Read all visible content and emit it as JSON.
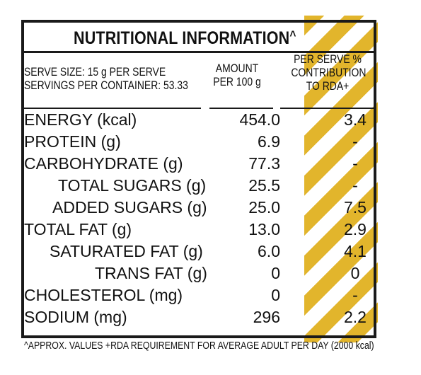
{
  "title": "NUTRITIONAL INFORMATION",
  "title_mark": "^",
  "serve_size": "SERVE SIZE: 15 g PER SERVE",
  "servings": "SERVINGS PER CONTAINER: 53.33",
  "col_amount_l1": "AMOUNT",
  "col_amount_l2": "PER 100 g",
  "col_rda_l1": "PER SERVE %",
  "col_rda_l2": "CONTRIBUTION",
  "col_rda_l3": "TO RDA+",
  "rows": [
    {
      "name": "ENERGY (kcal)",
      "amount": "454.0",
      "rda": "3.4"
    },
    {
      "name": "PROTEIN (g)",
      "amount": "6.9",
      "rda": "-"
    },
    {
      "name": "CARBOHYDRATE (g)",
      "amount": "77.3",
      "rda": "-"
    },
    {
      "name": "TOTAL SUGARS (g)",
      "amount": "25.5",
      "rda": "-"
    },
    {
      "name": "ADDED SUGARS (g)",
      "amount": "25.0",
      "rda": "7.5"
    },
    {
      "name": "TOTAL FAT (g)",
      "amount": "13.0",
      "rda": "2.9"
    },
    {
      "name": "SATURATED FAT (g)",
      "amount": "6.0",
      "rda": "4.1"
    },
    {
      "name": "TRANS FAT (g)",
      "amount": "0",
      "rda": "0"
    },
    {
      "name": "CHOLESTEROL (mg)",
      "amount": "0",
      "rda": "-"
    },
    {
      "name": "SODIUM (mg)",
      "amount": "296",
      "rda": "2.2"
    }
  ],
  "footnote": "^APPROX. VALUES +RDA REQUIREMENT FOR AVERAGE ADULT PER DAY (2000 kcal)",
  "colors": {
    "stripe": "#e2b52c",
    "ink": "#1a1a1a"
  }
}
